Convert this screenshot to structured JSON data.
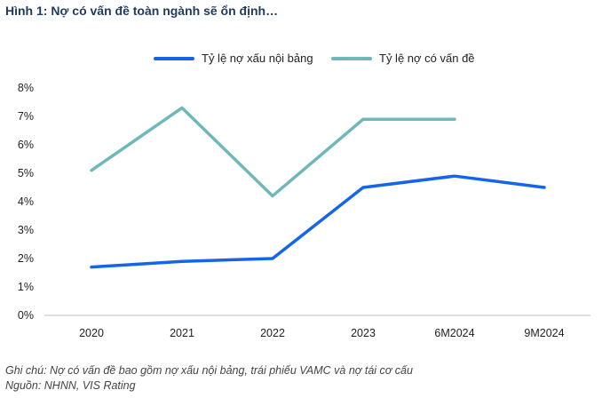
{
  "title": "Hình 1: Nợ có vấn đề toàn ngành sẽ ổn định…",
  "notes": {
    "caption": "Ghi chú: Nợ có vấn đề bao gồm nợ xấu nội bảng, trái phiếu VAMC và nợ tái cơ cấu",
    "source": "Nguồn: NHNN, VIS Rating"
  },
  "chart_data": {
    "type": "line",
    "title": "Hình 1: Nợ có vấn đề toàn ngành sẽ ổn định…",
    "categories": [
      "2020",
      "2021",
      "2022",
      "2023",
      "6M2024",
      "9M2024"
    ],
    "yticks": [
      "0%",
      "1%",
      "2%",
      "3%",
      "4%",
      "5%",
      "6%",
      "7%",
      "8%"
    ],
    "ylim": [
      0,
      8
    ],
    "grid": false,
    "legend": "top-center",
    "series": [
      {
        "name": "Tỷ lệ nợ xấu nội bảng",
        "color": "#1565e8",
        "values": [
          1.7,
          1.9,
          2.0,
          4.5,
          4.9,
          4.5
        ]
      },
      {
        "name": "Tỷ lệ nợ có vấn đề",
        "color": "#6fb8ba",
        "values": [
          5.1,
          7.3,
          4.2,
          6.9,
          6.9,
          null
        ]
      }
    ]
  }
}
